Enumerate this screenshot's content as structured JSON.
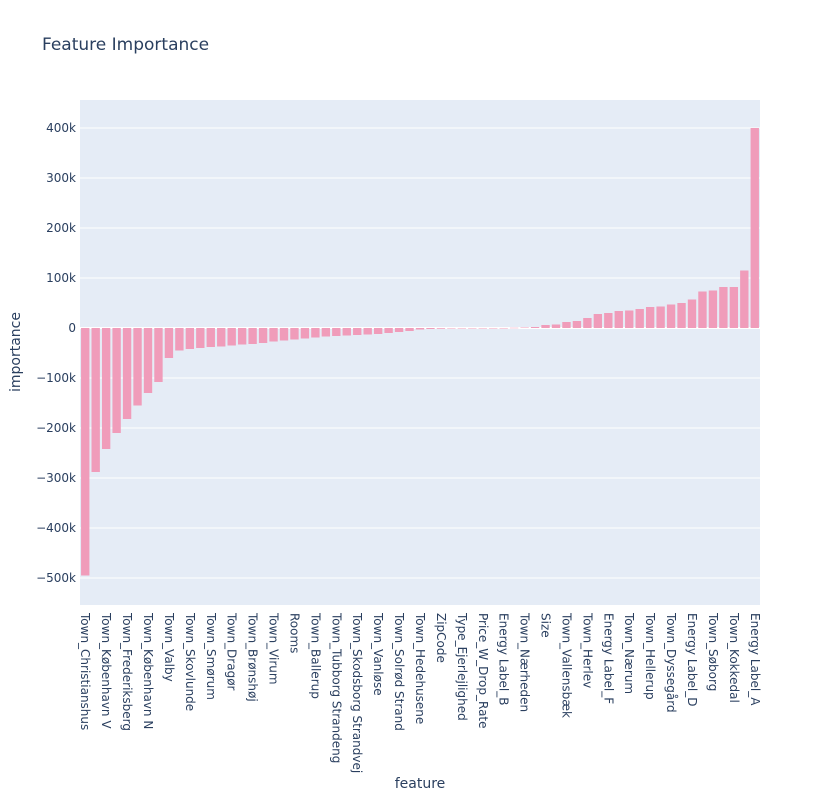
{
  "chart_data": {
    "type": "bar",
    "title": "Feature Importance",
    "x_label": "feature",
    "y_label": "importance",
    "color": "#f09cba",
    "grid": true,
    "categories": [
      "Town_Christianshus",
      null,
      "Town_København V",
      null,
      "Town_Frederiksberg",
      null,
      "Town_København N",
      null,
      "Town_Valby",
      null,
      "Town_Skovlunde",
      null,
      "Town_Smørum",
      null,
      "Town_Dragør",
      null,
      "Town_Brønshøj",
      null,
      "Town_Virum",
      null,
      "Rooms",
      null,
      "Town_Ballerup",
      null,
      "Town_Tubborg Strandeng",
      null,
      "Town_Skodsborg Strandvej",
      null,
      "Town_Vanløse",
      null,
      "Town_Solrød Strand",
      null,
      "Town_Hedehusene",
      null,
      "ZipCode",
      null,
      "Type_Ejerlejlighed",
      null,
      "Price_W_Drop_Rate",
      null,
      "Energy Label_B",
      null,
      "Town_Nærheden",
      null,
      "Size",
      null,
      "Town_Vallensbæk",
      null,
      "Town_Herlev",
      null,
      "Energy Label_F",
      null,
      "Town_Nærum",
      null,
      "Town_Hellerup",
      null,
      "Town_Dyssegård",
      null,
      "Energy Label_D",
      null,
      "Town_Søborg",
      null,
      "Town_Kokkedal",
      null,
      "Energy Label_A"
    ],
    "values": [
      -495000,
      -288000,
      -242000,
      -210000,
      -182000,
      -155000,
      -130000,
      -108000,
      -60000,
      -45000,
      -42000,
      -40000,
      -38000,
      -37000,
      -35000,
      -33000,
      -32000,
      -30000,
      -27000,
      -25000,
      -23000,
      -21000,
      -19000,
      -17000,
      -16000,
      -15000,
      -14000,
      -13000,
      -12000,
      -10000,
      -8000,
      -6000,
      -3000,
      -2000,
      -1500,
      -1000,
      -3,
      0,
      0,
      1,
      9,
      500,
      1000,
      2000,
      6000,
      7000,
      12000,
      14000,
      20000,
      28000,
      30000,
      34000,
      35000,
      38000,
      42000,
      43000,
      47000,
      50000,
      57000,
      73000,
      75000,
      82000,
      82000,
      115000,
      400000
    ],
    "ylim": [
      -554000,
      456000
    ],
    "yticks": [
      {
        "value": -500000,
        "label": "−500k"
      },
      {
        "value": -400000,
        "label": "−400k"
      },
      {
        "value": -300000,
        "label": "−300k"
      },
      {
        "value": -200000,
        "label": "−200k"
      },
      {
        "value": -100000,
        "label": "−100k"
      },
      0,
      {
        "value": 100000,
        "label": "100k"
      },
      {
        "value": 200000,
        "label": "200k"
      },
      {
        "value": 300000,
        "label": "300k"
      },
      {
        "value": 400000,
        "label": "400k"
      }
    ]
  }
}
